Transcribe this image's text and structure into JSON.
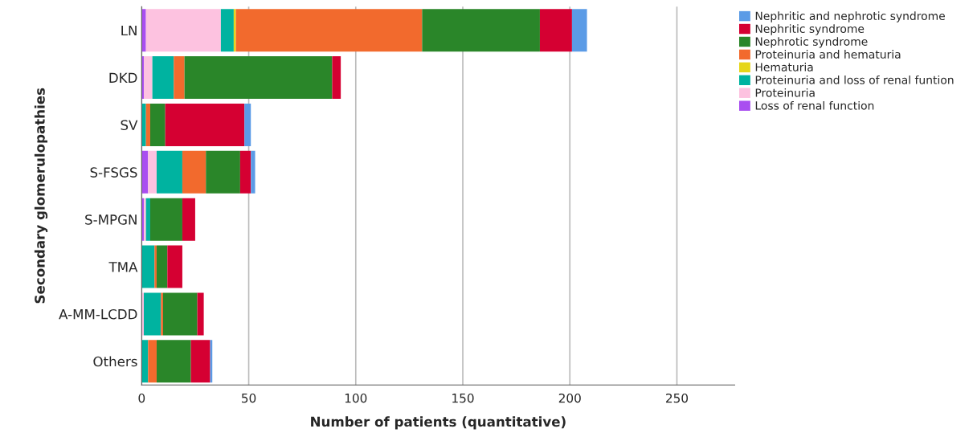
{
  "chart_data": {
    "type": "bar",
    "orientation": "horizontal",
    "stacked": true,
    "categories": [
      "LN",
      "DKD",
      "SV",
      "S-FSGS",
      "S-MPGN",
      "TMA",
      "A-MM-LCDD",
      "Others"
    ],
    "series": [
      {
        "name": "Loss of renal function",
        "color": "#a94ef0",
        "values": [
          2,
          1,
          0,
          3,
          1,
          0,
          0,
          0
        ]
      },
      {
        "name": "Proteinuria",
        "color": "#fdc2e0",
        "values": [
          35,
          4,
          0,
          4,
          1,
          0,
          1,
          0
        ]
      },
      {
        "name": "Proteinuria and loss of renal funtion",
        "color": "#00b3a0",
        "values": [
          6,
          10,
          2,
          12,
          2,
          6,
          8,
          3
        ]
      },
      {
        "name": "Hematuria",
        "color": "#e6d619",
        "values": [
          1,
          0,
          0,
          0,
          0,
          0,
          0,
          0
        ]
      },
      {
        "name": "Proteinuria and hematuria",
        "color": "#f26a2d",
        "values": [
          87,
          5,
          2,
          11,
          0,
          1,
          1,
          4
        ]
      },
      {
        "name": "Nephrotic syndrome",
        "color": "#2a8629",
        "values": [
          55,
          69,
          7,
          16,
          15,
          5,
          16,
          16
        ]
      },
      {
        "name": "Nephritic syndrome",
        "color": "#d50032",
        "values": [
          15,
          4,
          37,
          5,
          6,
          7,
          3,
          9
        ]
      },
      {
        "name": "Nephritic and nephrotic syndrome",
        "color": "#5b9be6",
        "values": [
          7,
          0,
          3,
          2,
          0,
          0,
          0,
          1
        ]
      }
    ],
    "xlim": [
      0,
      277
    ],
    "xticks": [
      0,
      50,
      100,
      150,
      200,
      250
    ],
    "xlabel": "Number of patients (quantitative)",
    "ylabel": "Secondary glomerulopathies",
    "grid": "x",
    "legend": "right"
  }
}
